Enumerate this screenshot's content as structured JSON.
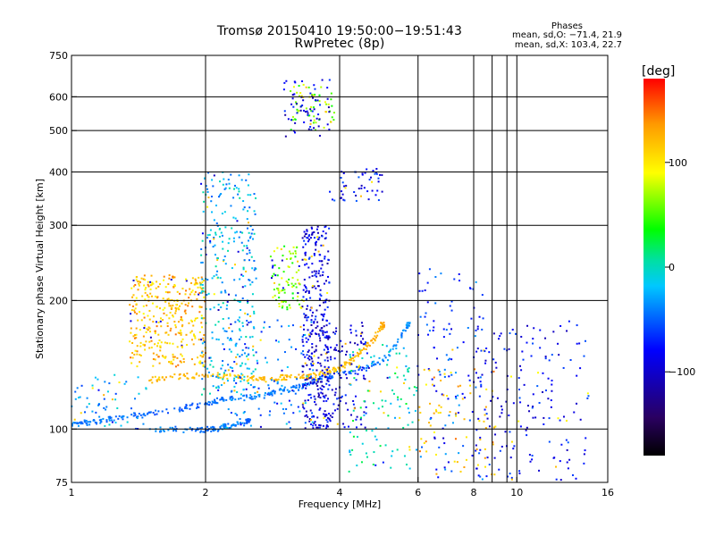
{
  "header": {
    "title_line1": "Tromsø 20150410 19:50:00−19:51:43",
    "title_line2": "RwPretec (8p)",
    "phases_title": "Phases",
    "phases_o": "mean, sd,O: −71.4, 21.9",
    "phases_x": "mean, sd,X: 103.4, 22.7"
  },
  "colors": {
    "background": "#ffffff",
    "grid": "#000000",
    "colorbar_stops": [
      "#000000",
      "#3a0070",
      "#0000ff",
      "#00c8ff",
      "#00ff00",
      "#ffff00",
      "#ff9900",
      "#ff0000"
    ]
  },
  "chart_data": {
    "type": "scatter",
    "title": "Tromsø 20150410 19:50:00−19:51:43",
    "subtitle": "RwPretec (8p)",
    "xlabel": "Frequency [MHz]",
    "ylabel": "Stationary phase Virtual Height [km]",
    "x_scale": "log",
    "y_scale": "log",
    "xlim": [
      1,
      16
    ],
    "ylim": [
      75,
      750
    ],
    "x_ticks": [
      1,
      2,
      4,
      6,
      8,
      10,
      16
    ],
    "x_tick_labels": [
      "1",
      "2",
      "4",
      "6",
      "8",
      "10",
      "16"
    ],
    "y_ticks": [
      75,
      100,
      200,
      300,
      400,
      500,
      600,
      750
    ],
    "y_tick_labels": [
      "75",
      "100",
      "200",
      "300",
      "400",
      "500",
      "600",
      "750"
    ],
    "grid": true,
    "colorbar": {
      "label": "[deg]",
      "range": [
        -180,
        180
      ],
      "ticks": [
        100,
        0,
        -100
      ],
      "tick_labels": [
        "100",
        "0",
        "−100"
      ]
    },
    "series": [
      {
        "x": [
          1.0,
          1.05,
          1.1,
          1.2,
          1.3,
          1.45,
          1.6,
          1.8,
          2.0,
          2.1,
          2.2,
          2.4,
          2.6,
          2.8,
          3.0,
          3.2,
          3.4,
          3.6,
          3.8,
          4.2,
          4.6,
          5.0,
          5.4,
          5.7
        ],
        "y": [
          102,
          103,
          104,
          105,
          107,
          108,
          110,
          112,
          115,
          116,
          117,
          118,
          119,
          121,
          123,
          125,
          128,
          131,
          133,
          136,
          139,
          145,
          160,
          175
        ],
        "phase": [
          -40,
          -42,
          -44,
          -46,
          -48,
          -50,
          -52,
          -50,
          -48,
          -46,
          -44,
          -42,
          -40,
          -40,
          -40,
          -42,
          -44,
          -46,
          -50,
          -55,
          -45,
          -40,
          -38,
          -35
        ]
      },
      {
        "x": [
          1.5,
          1.6,
          1.8,
          2.0,
          2.2,
          2.4,
          2.6,
          2.8,
          3.0,
          3.2,
          3.4,
          3.6,
          3.8,
          4.0,
          4.2,
          4.4,
          4.6,
          4.8,
          5.0
        ],
        "y": [
          130,
          132,
          133,
          134,
          133,
          132,
          131,
          131,
          132,
          132,
          133,
          134,
          137,
          139,
          143,
          149,
          157,
          165,
          175
        ],
        "phase": [
          120,
          125,
          125,
          120,
          115,
          118,
          120,
          122,
          125,
          125,
          122,
          120,
          118,
          118,
          120,
          125,
          125,
          128,
          130
        ]
      },
      {
        "x": [
          1.5,
          1.7,
          1.9,
          2.0,
          2.1,
          2.2,
          2.3,
          2.4,
          2.5
        ],
        "y": [
          100,
          100,
          99,
          100,
          100,
          101,
          102,
          103,
          104
        ],
        "phase": [
          -40,
          -45,
          -50,
          -45,
          -40,
          -40,
          -42,
          -45,
          -50
        ]
      }
    ]
  }
}
